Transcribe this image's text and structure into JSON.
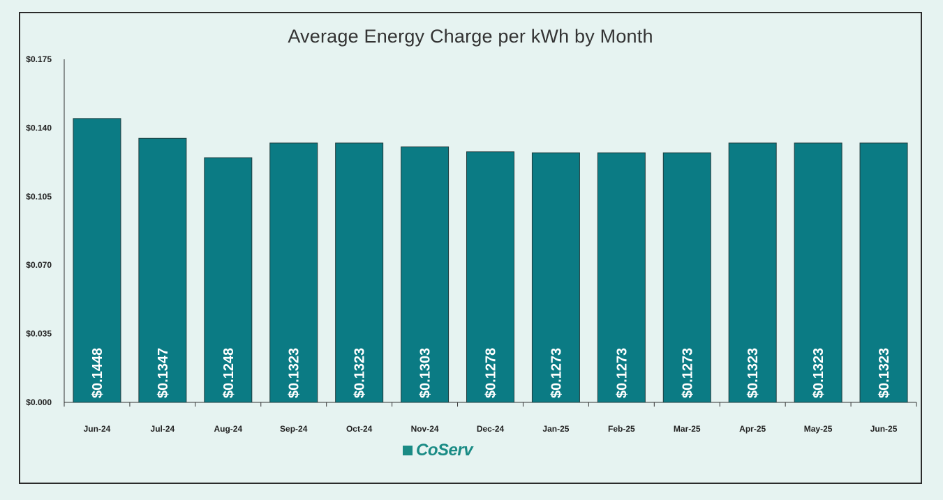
{
  "chart_data": {
    "type": "bar",
    "title": "Average Energy Charge per kWh by Month",
    "xlabel": "",
    "ylabel": "",
    "ylim": [
      0,
      0.175
    ],
    "yticks": [
      "$0.000",
      "$0.035",
      "$0.070",
      "$0.105",
      "$0.140",
      "$0.175"
    ],
    "ytick_values": [
      0,
      0.035,
      0.07,
      0.105,
      0.14,
      0.175
    ],
    "categories": [
      "Jun-24",
      "Jul-24",
      "Aug-24",
      "Sep-24",
      "Oct-24",
      "Nov-24",
      "Dec-24",
      "Jan-25",
      "Feb-25",
      "Mar-25",
      "Apr-25",
      "May-25",
      "Jun-25"
    ],
    "values": [
      0.1448,
      0.1347,
      0.1248,
      0.1323,
      0.1323,
      0.1303,
      0.1278,
      0.1273,
      0.1273,
      0.1273,
      0.1323,
      0.1323,
      0.1323
    ],
    "data_labels": [
      "$0.1448",
      "$0.1347",
      "$0.1248",
      "$0.1323",
      "$0.1323",
      "$0.1303",
      "$0.1278",
      "$0.1273",
      "$0.1273",
      "$0.1273",
      "$0.1323",
      "$0.1323",
      "$0.1323"
    ],
    "grid": false,
    "bar_color": "#0b7b84",
    "label_color": "#ffffff"
  },
  "branding": {
    "logo_text": "CoServ",
    "logo_color": "#1a8b85"
  }
}
